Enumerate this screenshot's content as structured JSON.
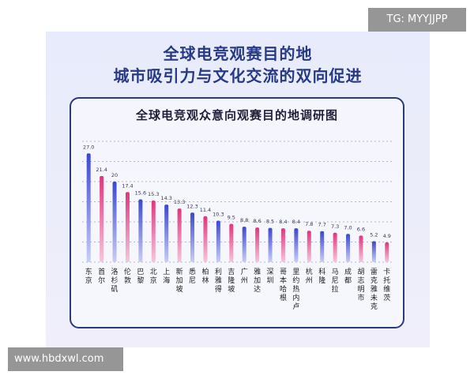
{
  "headline": {
    "line1": "全球电竞观赛目的地",
    "line2": "城市吸引力与文化交流的双向促进"
  },
  "watermarks": {
    "top": "TG: MYYJJPP",
    "bottom": "www.hbdxwl.com"
  },
  "colors": {
    "headline": "#283a86",
    "bar_blue": "#4a56d8",
    "bar_pink": "#e0357e",
    "panel_border": "#2a3a7a"
  },
  "chart_data": {
    "type": "bar",
    "title": "全球电竞观众意向观赛目的地调研图",
    "xlabel": "",
    "ylabel": "",
    "ylim": [
      0,
      30
    ],
    "grid": true,
    "categories": [
      "东京",
      "首尔",
      "洛杉矶",
      "伦敦",
      "巴黎",
      "北京",
      "上海",
      "新加坡",
      "悉尼",
      "柏林",
      "利雅得",
      "吉隆坡",
      "广州",
      "雅加达",
      "深圳",
      "哥本哈根",
      "里约热内卢",
      "杭州",
      "科隆",
      "马尼拉",
      "成都",
      "胡志明市",
      "雷克雅未克",
      "卡托维茨"
    ],
    "values": [
      27.0,
      21.4,
      20,
      17.4,
      15.6,
      15.3,
      14.3,
      13.3,
      12.3,
      11.4,
      10.3,
      9.5,
      8.8,
      8.6,
      8.5,
      8.4,
      8.4,
      7.8,
      7.7,
      7.3,
      7.0,
      6.6,
      5.2,
      4.9
    ],
    "value_labels": [
      "27.0",
      "21.4",
      "20",
      "17.4",
      "15.6",
      "15.3",
      "14.3",
      "13.3",
      "12.3",
      "11.4",
      "10.3",
      "9.5",
      "8.8",
      "8.6",
      "8.5",
      "8.4",
      "8.4",
      "7.8",
      "7.7",
      "7.3",
      "7.0",
      "6.6",
      "5.2",
      "4.9"
    ]
  }
}
